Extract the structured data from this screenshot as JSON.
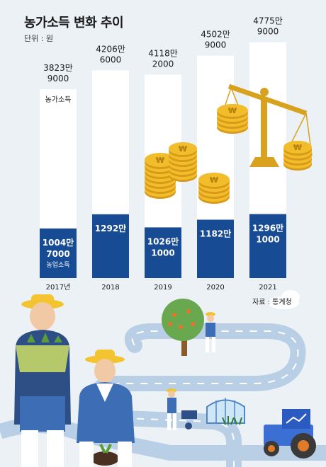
{
  "title": "농가소득 변화 추이",
  "unit": "단위 : 원",
  "source": "자료 : 통계청",
  "colors": {
    "background": "#ecf1f6",
    "total_bar": "#ffffff",
    "farm_bar": "#174b94",
    "road": "#b9cfe6",
    "coin": "#f2bd2a"
  },
  "icons": [
    "coin-stack-icon",
    "balance-scale-icon",
    "farmer-icon",
    "tractor-icon",
    "greenhouse-icon",
    "tree-icon",
    "cloud-icon"
  ],
  "chart_data": {
    "type": "bar",
    "categories": [
      "2017년",
      "2018",
      "2019",
      "2020",
      "2021"
    ],
    "series": [
      {
        "name": "농가소득",
        "values": [
          38239000,
          42066000,
          41182000,
          45029000,
          47759000
        ]
      },
      {
        "name": "농업소득",
        "values": [
          10047000,
          12920000,
          10261000,
          11820000,
          12961000
        ]
      }
    ],
    "value_labels": {
      "total": [
        [
          "3823만",
          "9000"
        ],
        [
          "4206만",
          "6000"
        ],
        [
          "4118만",
          "2000"
        ],
        [
          "4502만",
          "9000"
        ],
        [
          "4775만",
          "9000"
        ]
      ],
      "farm": [
        [
          "1004만",
          "7000"
        ],
        [
          "1292만",
          ""
        ],
        [
          "1026만",
          "1000"
        ],
        [
          "1182만",
          ""
        ],
        [
          "1296만",
          "1000"
        ]
      ]
    },
    "series_labels": {
      "total": "농가소득",
      "farm": "농업소득"
    },
    "grid": false,
    "legend": "inside-first-bar"
  }
}
